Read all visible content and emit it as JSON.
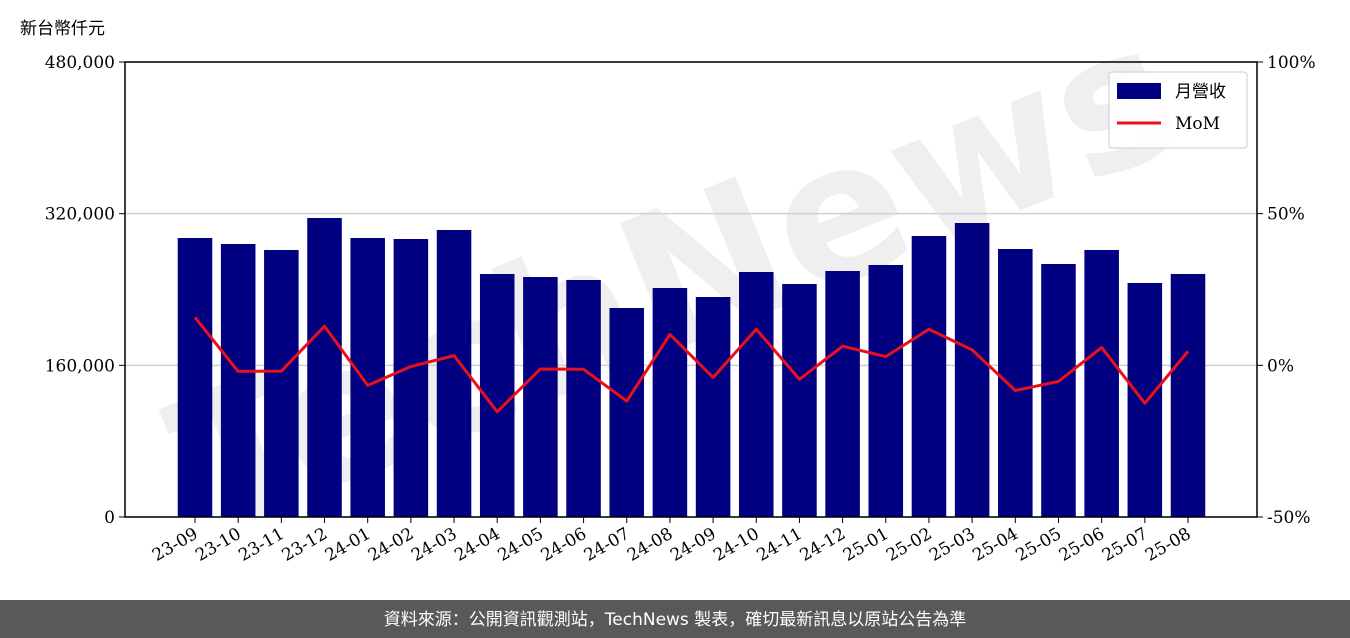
{
  "chart_data": {
    "type": "bar",
    "y_label": "新台幣仟元",
    "watermark": "TechNews",
    "source": "資料來源：公開資訊觀測站，TechNews 製表，確切最新訊息以原站公告為準",
    "categories": [
      "23-09",
      "23-10",
      "23-11",
      "23-12",
      "24-01",
      "24-02",
      "24-03",
      "24-04",
      "24-05",
      "24-06",
      "24-07",
      "24-08",
      "24-09",
      "24-10",
      "24-11",
      "24-12",
      "25-01",
      "25-02",
      "25-03",
      "25-04",
      "25-05",
      "25-06",
      "25-07",
      "25-08"
    ],
    "series": [
      {
        "name": "月營收",
        "type": "bar",
        "color": "#000080",
        "values": [
          294330,
          288000,
          281670,
          315430,
          294330,
          293270,
          302770,
          256350,
          253190,
          250020,
          220480,
          241580,
          232090,
          258460,
          245800,
          259520,
          265850,
          296440,
          310150,
          282730,
          266900,
          281670,
          246860,
          256350
        ]
      },
      {
        "name": "MoM",
        "type": "line",
        "axis": "y2",
        "color": "#e8101a",
        "values": [
          15.8,
          -2.0,
          -1.9,
          12.9,
          -6.6,
          -0.4,
          3.2,
          -15.3,
          -1.2,
          -1.3,
          -11.8,
          10.2,
          -4.0,
          11.9,
          -4.6,
          6.3,
          2.9,
          11.9,
          5.1,
          -8.3,
          -5.3,
          5.9,
          -12.5,
          4.6
        ]
      }
    ],
    "ylim": [
      0,
      480000
    ],
    "yticks": [
      0,
      {
        "value": 160000,
        "label": "160,000"
      },
      {
        "value": 320000,
        "label": "320,000"
      },
      {
        "value": 480000,
        "label": "480,000"
      }
    ],
    "y2lim": [
      -50,
      100
    ],
    "y2ticks": [
      {
        "value": -50,
        "label": "-50%"
      },
      {
        "value": 0,
        "label": "0%"
      },
      {
        "value": 50,
        "label": "50%"
      },
      {
        "value": 100,
        "label": "100%"
      }
    ],
    "grid": true,
    "legend": "upper right"
  }
}
